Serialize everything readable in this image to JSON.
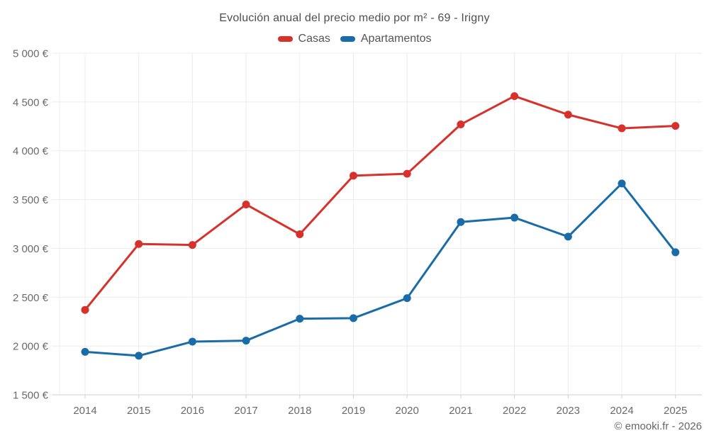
{
  "title": "Evolución anual del precio medio por m² - 69 - Irigny",
  "footer": "© emooki.fr - 2026",
  "colors": {
    "casas": "#d7312c",
    "apartamentos": "#1a6ca8",
    "gridline": "#ececec",
    "axis_line": "#cfcfcf",
    "tick_text": "#6a6a6a",
    "title_text": "#4e4e4e",
    "background": "#ffffff"
  },
  "chart_data": {
    "type": "line",
    "title": "Evolución anual del precio medio por m² - 69 - Irigny",
    "x": [
      2014,
      2015,
      2016,
      2017,
      2018,
      2019,
      2020,
      2021,
      2022,
      2023,
      2024,
      2025
    ],
    "series": [
      {
        "name": "Casas",
        "color": "#d7312c",
        "values": [
          2370,
          3045,
          3035,
          3450,
          3145,
          3745,
          3765,
          4270,
          4560,
          4370,
          4230,
          4255
        ]
      },
      {
        "name": "Apartamentos",
        "color": "#1a6ca8",
        "values": [
          1940,
          1900,
          2045,
          2055,
          2280,
          2285,
          2490,
          3270,
          3315,
          3120,
          3665,
          2960
        ]
      }
    ],
    "xlabel": "",
    "ylabel": "",
    "ylim": [
      1500,
      5000
    ],
    "y_ticks": [
      {
        "value": 1500,
        "label": "1 500 €"
      },
      {
        "value": 2000,
        "label": "2 000 €"
      },
      {
        "value": 2500,
        "label": "2 500 €"
      },
      {
        "value": 3000,
        "label": "3 000 €"
      },
      {
        "value": 3500,
        "label": "3 500 €"
      },
      {
        "value": 4000,
        "label": "4 000 €"
      },
      {
        "value": 4500,
        "label": "4 500 €"
      },
      {
        "value": 5000,
        "label": "5 000 €"
      }
    ],
    "grid": true,
    "legend_position": "top"
  }
}
